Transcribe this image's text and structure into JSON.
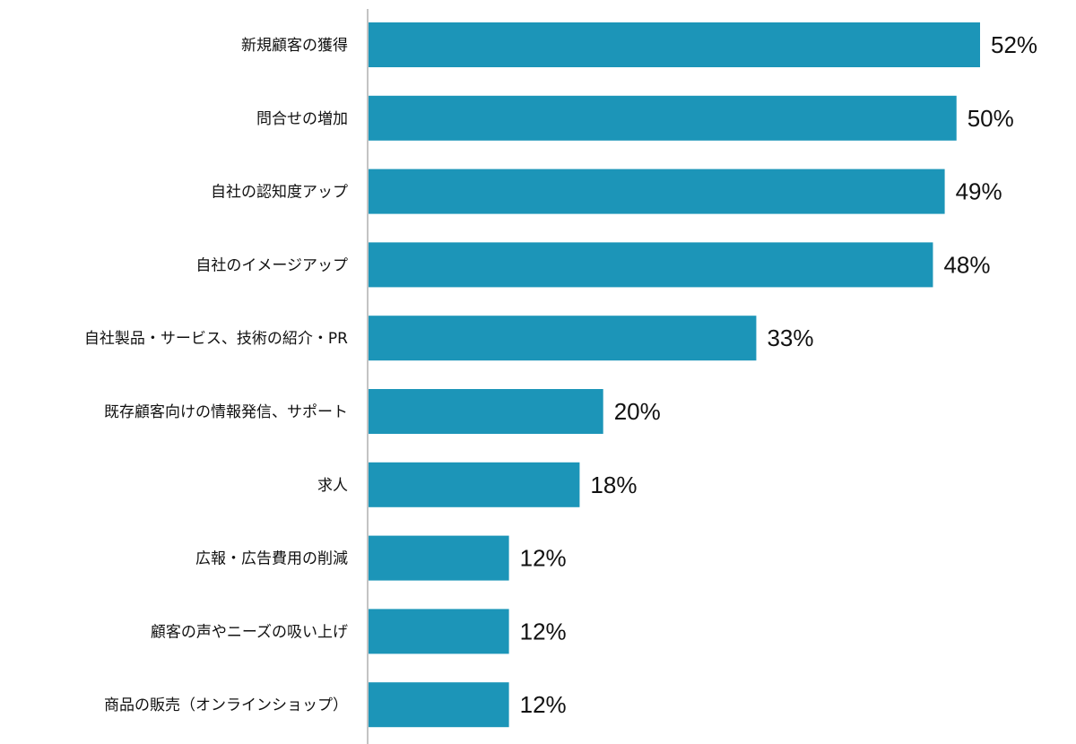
{
  "chart_data": {
    "type": "bar",
    "orientation": "horizontal",
    "categories": [
      "新規顧客の獲得",
      "問合せの増加",
      "自社の認知度アップ",
      "自社のイメージアップ",
      "自社製品・サービス、技術の紹介・PR",
      "既存顧客向けの情報発信、サポート",
      "求人",
      "広報・広告費用の削減",
      "顧客の声やニーズの吸い上げ",
      "商品の販売（オンラインショップ）"
    ],
    "values": [
      52,
      50,
      49,
      48,
      33,
      20,
      18,
      12,
      12,
      12
    ],
    "value_labels": [
      "52%",
      "50%",
      "49%",
      "48%",
      "33%",
      "20%",
      "18%",
      "12%",
      "12%",
      "12%"
    ],
    "unit": "%",
    "xlim": [
      0,
      52
    ],
    "grid": false,
    "bar_color": "#1c95b8",
    "axis_color": "#8a8a8a"
  }
}
